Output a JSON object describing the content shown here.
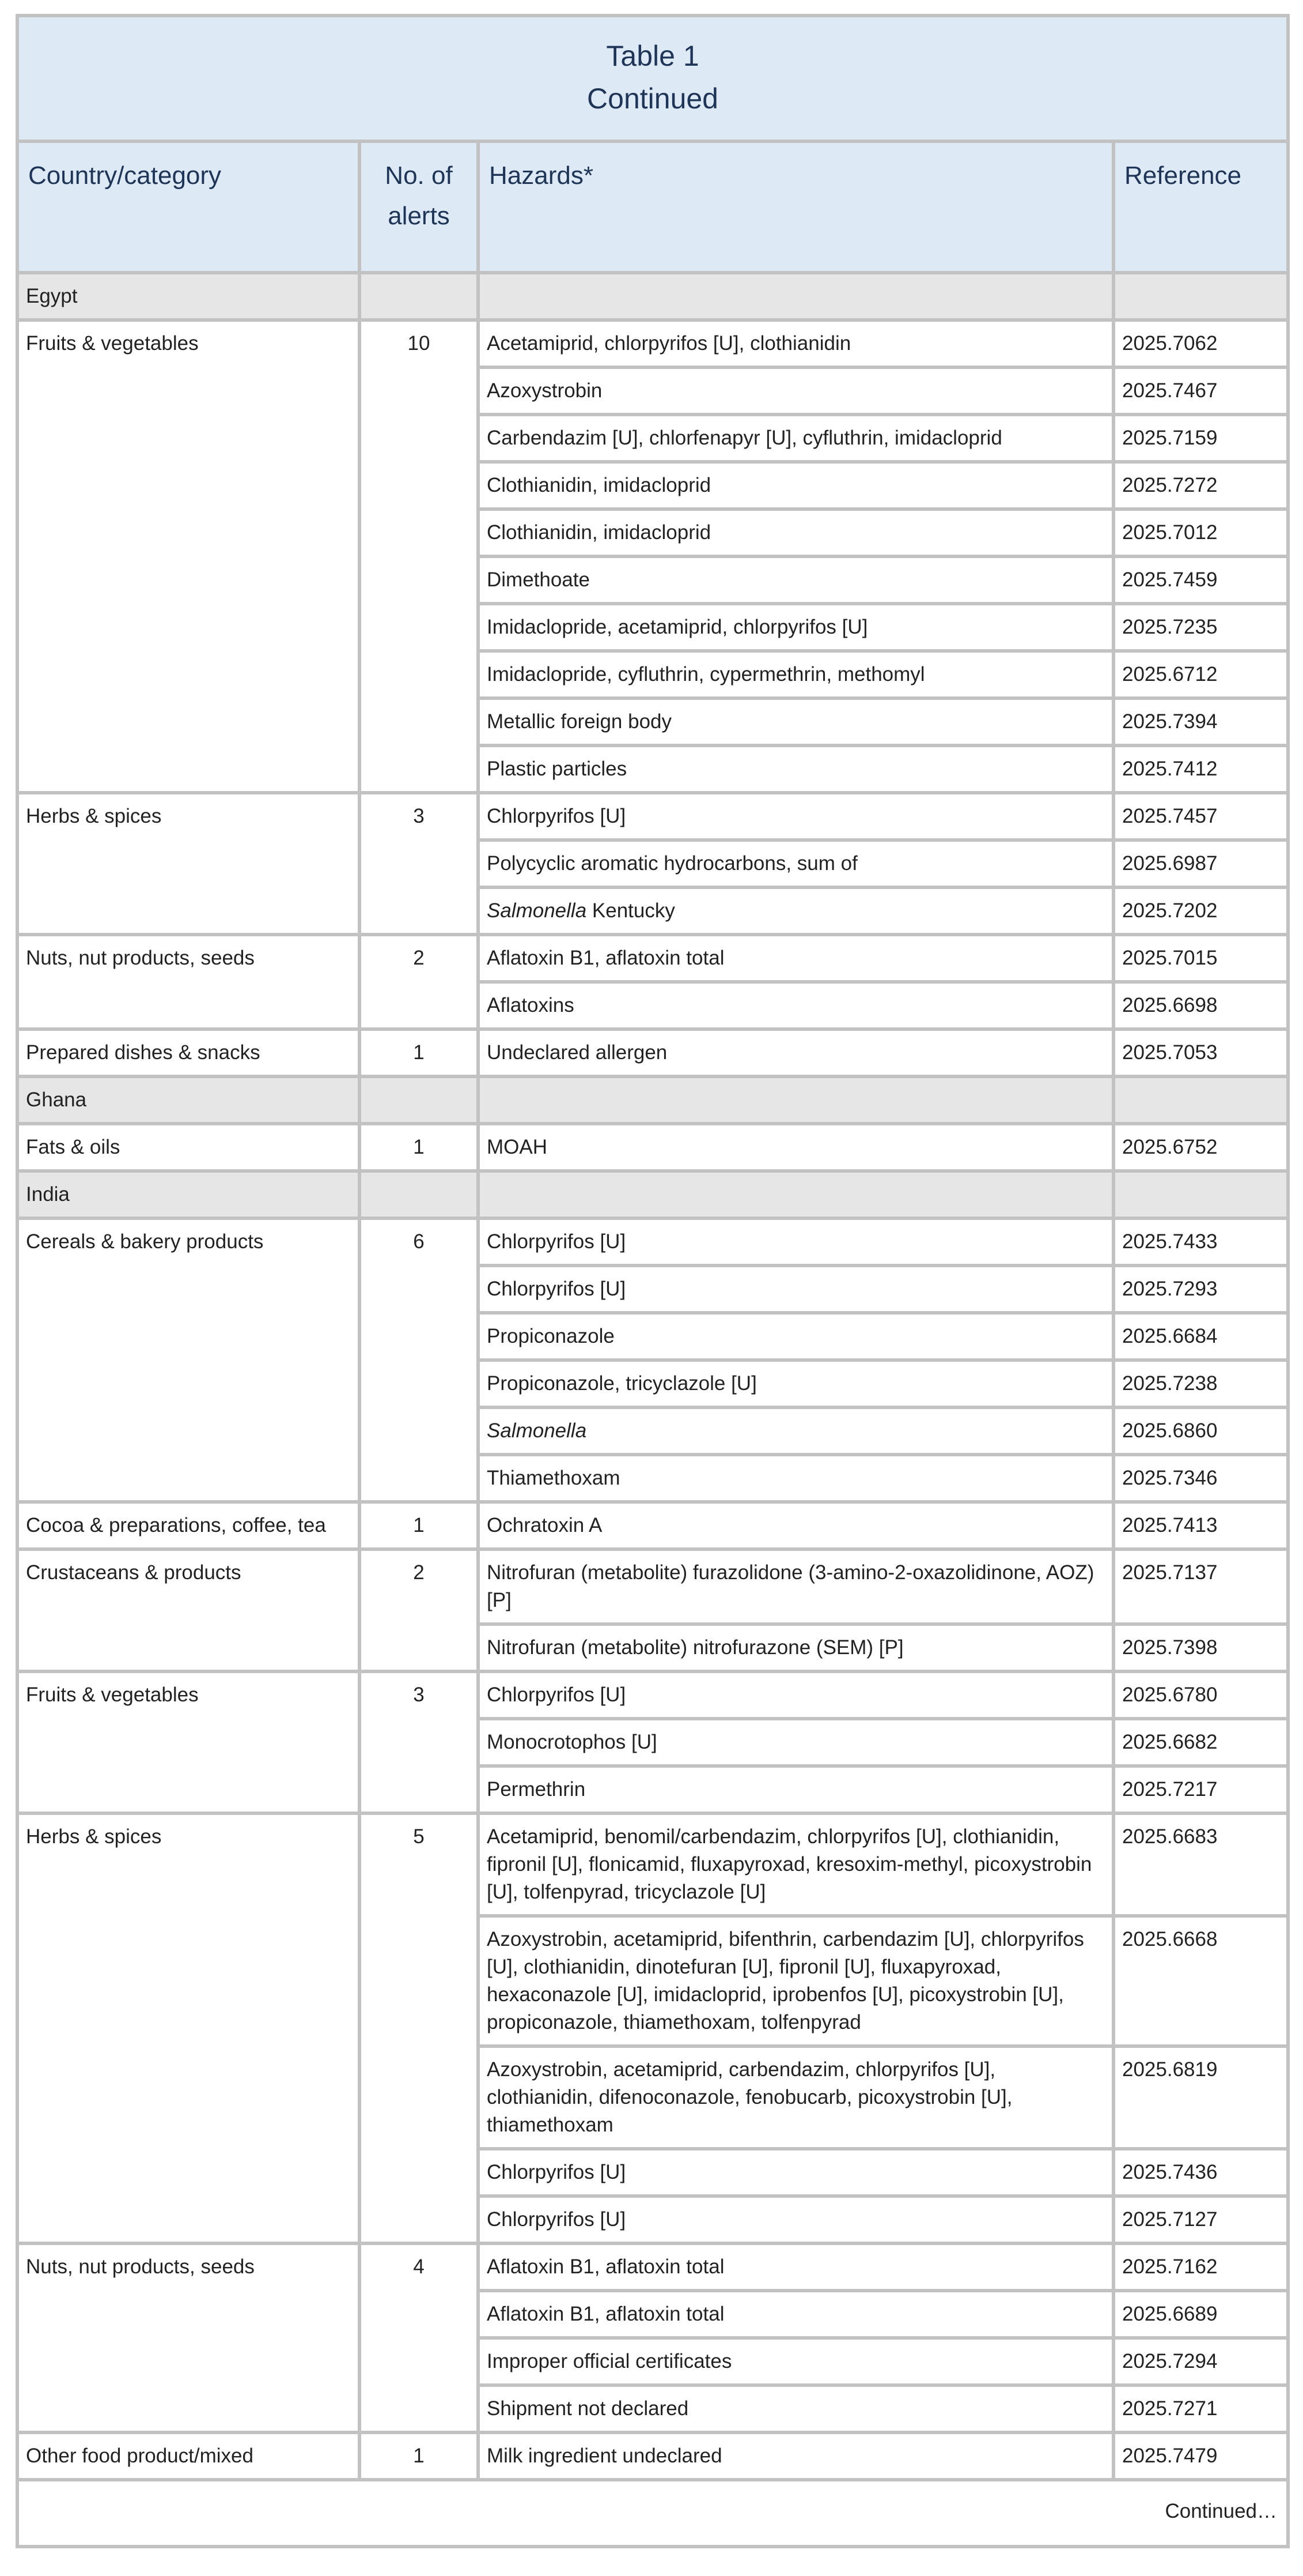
{
  "table": {
    "title": "Table 1",
    "subtitle": "Continued",
    "headers": [
      "Country/category",
      "No. of alerts",
      "Hazards*",
      "Reference"
    ],
    "footer": "Continued…",
    "colors": {
      "header_bg": "#dde9f5",
      "country_bg": "#e6e6e6",
      "border": "#c2c2c2",
      "title_text": "#1f3557"
    },
    "sections": [
      {
        "country": "Egypt",
        "categories": [
          {
            "name": "Fruits & vegetables",
            "alerts": "10",
            "rows": [
              {
                "hazard": "Acetamiprid, chlorpyrifos [U], clothianidin",
                "ref": "2025.7062"
              },
              {
                "hazard": "Azoxystrobin",
                "ref": "2025.7467"
              },
              {
                "hazard": "Carbendazim [U], chlorfenapyr [U], cyfluthrin, imidacloprid",
                "ref": "2025.7159"
              },
              {
                "hazard": "Clothianidin, imidacloprid",
                "ref": "2025.7272"
              },
              {
                "hazard": "Clothianidin, imidacloprid",
                "ref": "2025.7012"
              },
              {
                "hazard": "Dimethoate",
                "ref": "2025.7459"
              },
              {
                "hazard": "Imidaclopride, acetamiprid, chlorpyrifos [U]",
                "ref": "2025.7235"
              },
              {
                "hazard": "Imidaclopride, cyfluthrin, cypermethrin, methomyl",
                "ref": "2025.6712"
              },
              {
                "hazard": "Metallic foreign body",
                "ref": "2025.7394"
              },
              {
                "hazard": "Plastic particles",
                "ref": "2025.7412"
              }
            ]
          },
          {
            "name": "Herbs & spices",
            "alerts": "3",
            "rows": [
              {
                "hazard": "Chlorpyrifos [U]",
                "ref": "2025.7457"
              },
              {
                "hazard": "Polycyclic aromatic hydrocarbons, sum of",
                "ref": "2025.6987"
              },
              {
                "italic": "Salmonella",
                "hazard": " Kentucky",
                "ref": "2025.7202"
              }
            ]
          },
          {
            "name": "Nuts, nut products, seeds",
            "alerts": "2",
            "rows": [
              {
                "hazard": "Aflatoxin B1, aflatoxin total",
                "ref": "2025.7015"
              },
              {
                "hazard": "Aflatoxins",
                "ref": "2025.6698"
              }
            ]
          },
          {
            "name": "Prepared dishes & snacks",
            "alerts": "1",
            "rows": [
              {
                "hazard": "Undeclared allergen",
                "ref": "2025.7053"
              }
            ]
          }
        ]
      },
      {
        "country": "Ghana",
        "categories": [
          {
            "name": "Fats & oils",
            "alerts": "1",
            "rows": [
              {
                "hazard": "MOAH",
                "ref": "2025.6752"
              }
            ]
          }
        ]
      },
      {
        "country": "India",
        "categories": [
          {
            "name": "Cereals & bakery products",
            "alerts": "6",
            "rows": [
              {
                "hazard": "Chlorpyrifos [U]",
                "ref": "2025.7433"
              },
              {
                "hazard": "Chlorpyrifos [U]",
                "ref": "2025.7293"
              },
              {
                "hazard": "Propiconazole",
                "ref": "2025.6684"
              },
              {
                "hazard": "Propiconazole, tricyclazole [U]",
                "ref": "2025.7238"
              },
              {
                "italic": "Salmonella",
                "hazard": "",
                "ref": "2025.6860"
              },
              {
                "hazard": "Thiamethoxam",
                "ref": "2025.7346"
              }
            ]
          },
          {
            "name": "Cocoa & preparations, coffee, tea",
            "alerts": "1",
            "rows": [
              {
                "hazard": "Ochratoxin A",
                "ref": "2025.7413"
              }
            ]
          },
          {
            "name": "Crustaceans & products",
            "alerts": "2",
            "rows": [
              {
                "hazard": "Nitrofuran (metabolite) furazolidone (3-amino-2-oxazolidinone, AOZ) [P]",
                "ref": "2025.7137"
              },
              {
                "hazard": "Nitrofuran (metabolite) nitrofurazone (SEM) [P]",
                "ref": "2025.7398"
              }
            ]
          },
          {
            "name": "Fruits & vegetables",
            "alerts": "3",
            "rows": [
              {
                "hazard": "Chlorpyrifos [U]",
                "ref": "2025.6780"
              },
              {
                "hazard": "Monocrotophos [U]",
                "ref": "2025.6682"
              },
              {
                "hazard": "Permethrin",
                "ref": "2025.7217"
              }
            ]
          },
          {
            "name": "Herbs & spices",
            "alerts": "5",
            "rows": [
              {
                "hazard": "Acetamiprid, benomil/carbendazim, chlorpyrifos [U], clothianidin, fipronil [U], flonicamid, fluxapyroxad, kresoxim-methyl, picoxystrobin [U], tolfenpyrad, tricyclazole [U]",
                "ref": "2025.6683"
              },
              {
                "hazard": "Azoxystrobin, acetamiprid, bifenthrin, carbendazim [U], chlorpyrifos [U], clothianidin, dinotefuran [U], fipronil [U], fluxapyroxad, hexaconazole [U], imidacloprid, iprobenfos [U], picoxystrobin [U], propiconazole, thiamethoxam, tolfenpyrad",
                "ref": "2025.6668"
              },
              {
                "hazard": "Azoxystrobin, acetamiprid, carbendazim, chlorpyrifos [U], clothianidin, difenoconazole, fenobucarb, picoxystrobin [U], thiamethoxam",
                "ref": "2025.6819"
              },
              {
                "hazard": "Chlorpyrifos [U]",
                "ref": "2025.7436"
              },
              {
                "hazard": "Chlorpyrifos [U]",
                "ref": "2025.7127"
              }
            ]
          },
          {
            "name": "Nuts, nut products, seeds",
            "alerts": "4",
            "rows": [
              {
                "hazard": "Aflatoxin B1, aflatoxin total",
                "ref": "2025.7162"
              },
              {
                "hazard": "Aflatoxin B1, aflatoxin total",
                "ref": "2025.6689"
              },
              {
                "hazard": "Improper official certificates",
                "ref": "2025.7294"
              },
              {
                "hazard": "Shipment not declared",
                "ref": "2025.7271"
              }
            ]
          },
          {
            "name": "Other food product/mixed",
            "alerts": "1",
            "rows": [
              {
                "hazard": "Milk ingredient undeclared",
                "ref": "2025.7479"
              }
            ]
          }
        ]
      }
    ]
  }
}
